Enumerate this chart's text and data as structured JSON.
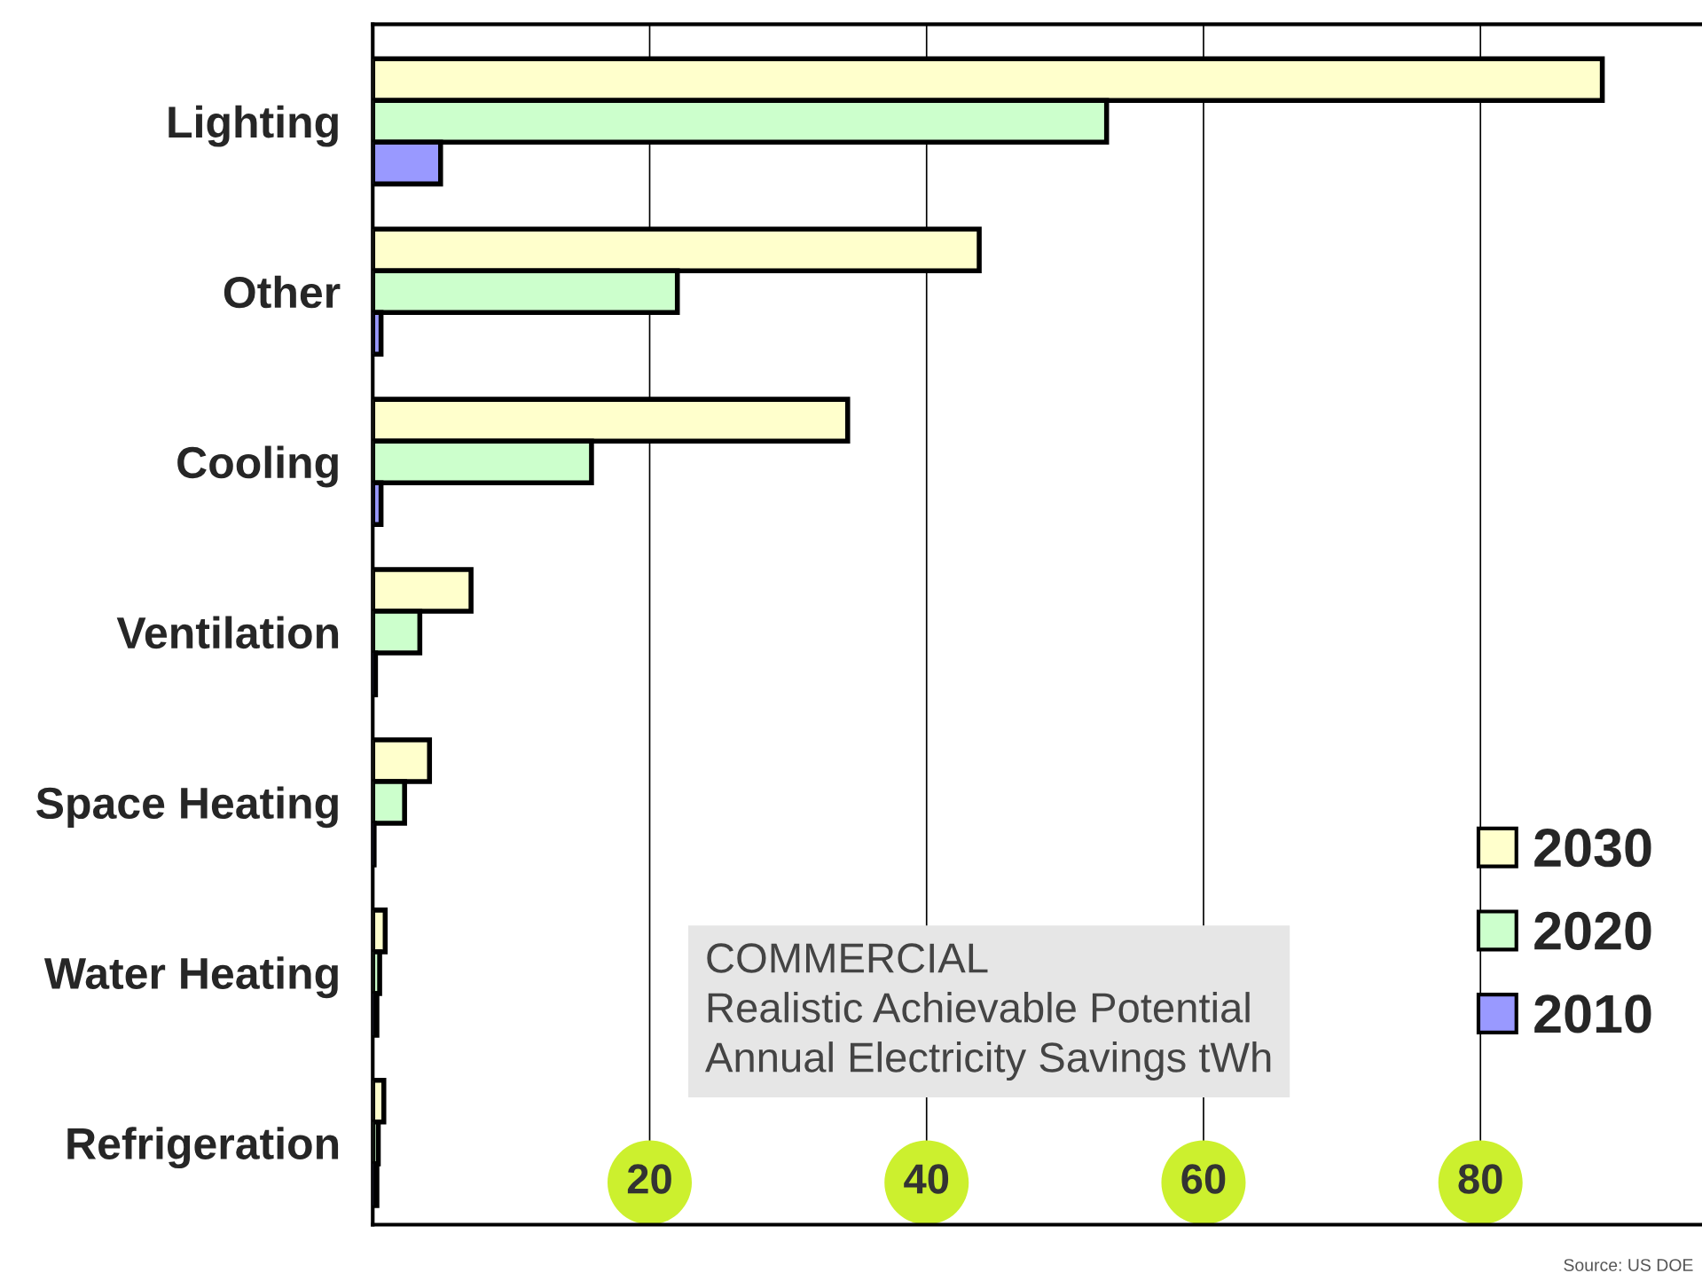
{
  "chart_data": {
    "type": "bar",
    "orientation": "horizontal",
    "categories": [
      "Lighting",
      "Other",
      "Cooling",
      "Ventilation",
      "Space Heating",
      "Water Heating",
      "Refrigeration"
    ],
    "series": [
      {
        "name": "2030",
        "color": "#ffffcc",
        "values": [
          88.8,
          43.8,
          34.3,
          7.1,
          4.1,
          0.9,
          0.8
        ]
      },
      {
        "name": "2020",
        "color": "#ccffcc",
        "values": [
          53.0,
          22.0,
          15.8,
          3.4,
          2.3,
          0.5,
          0.4
        ]
      },
      {
        "name": "2010",
        "color": "#9999ff",
        "values": [
          4.9,
          0.6,
          0.6,
          0.2,
          0.1,
          0.3,
          0.3
        ]
      }
    ],
    "xlim": [
      0,
      96
    ],
    "xticks": [
      20,
      40,
      60,
      80
    ],
    "grid": "x",
    "legend": "bottom right",
    "annotations": [
      "COMMERCIAL\nRealistic Achievable Potential\nAnnual Electricity Savings tWh",
      "Source: US DOE"
    ]
  }
}
